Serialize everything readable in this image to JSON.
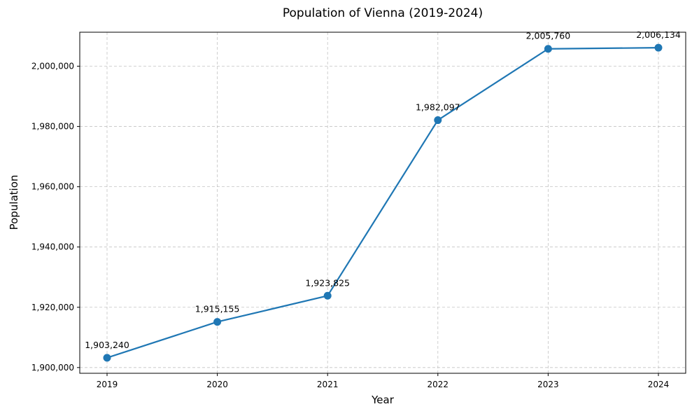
{
  "chart_data": {
    "type": "line",
    "title": "Population of Vienna (2019-2024)",
    "xlabel": "Year",
    "ylabel": "Population",
    "x": [
      "2019",
      "2020",
      "2021",
      "2022",
      "2023",
      "2024"
    ],
    "series": [
      {
        "values": [
          1903240,
          1915155,
          1923825,
          1982097,
          2005760,
          2006134
        ],
        "data_labels": [
          "1,903,240",
          "1,915,155",
          "1,923,825",
          "1,982,097",
          "2,005,760",
          "2,006,134"
        ],
        "color": "#1f77b4"
      }
    ],
    "yticks": [
      1900000,
      1920000,
      1940000,
      1960000,
      1980000,
      2000000
    ],
    "ytick_labels": [
      "1,900,000",
      "1,920,000",
      "1,940,000",
      "1,960,000",
      "1,980,000",
      "2,000,000"
    ],
    "ylim": [
      1898096,
      2011278
    ],
    "grid": true,
    "grid_style": "dashed",
    "axes_color": "#000000",
    "grid_color": "#b0b0b0"
  }
}
